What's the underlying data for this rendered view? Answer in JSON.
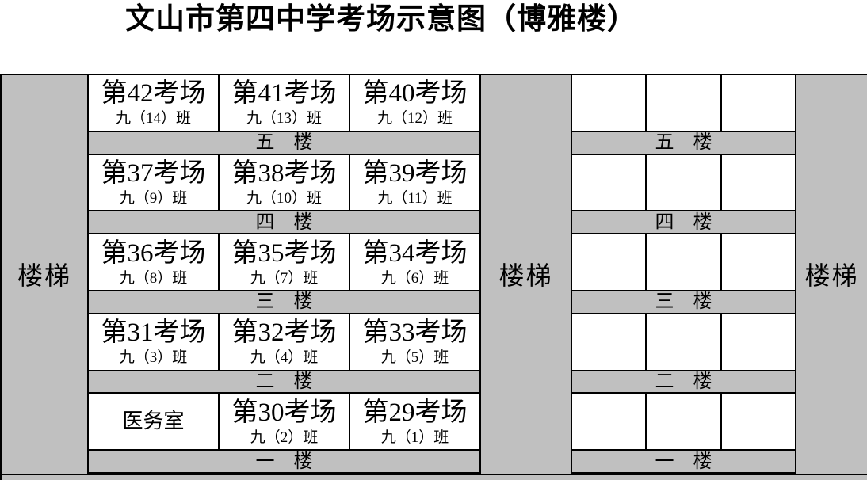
{
  "title": "文山市第四中学考场示意图（博雅楼）",
  "stairs": {
    "left_label": "楼梯",
    "middle_label": "楼梯",
    "right_label": "楼梯"
  },
  "floors": [
    {
      "label": "五　楼",
      "rooms": [
        {
          "name": "第42考场",
          "class": "九（14）班"
        },
        {
          "name": "第41考场",
          "class": "九（13）班"
        },
        {
          "name": "第40考场",
          "class": "九（12）班"
        }
      ]
    },
    {
      "label": "四　楼",
      "rooms": [
        {
          "name": "第37考场",
          "class": "九（9）班"
        },
        {
          "name": "第38考场",
          "class": "九（10）班"
        },
        {
          "name": "第39考场",
          "class": "九（11）班"
        }
      ]
    },
    {
      "label": "三　楼",
      "rooms": [
        {
          "name": "第36考场",
          "class": "九（8）班"
        },
        {
          "name": "第35考场",
          "class": "九（7）班"
        },
        {
          "name": "第34考场",
          "class": "九（6）班"
        }
      ]
    },
    {
      "label": "二　楼",
      "rooms": [
        {
          "name": "第31考场",
          "class": "九（3）班"
        },
        {
          "name": "第32考场",
          "class": "九（4）班"
        },
        {
          "name": "第33考场",
          "class": "九（5）班"
        }
      ]
    },
    {
      "label": "一　楼",
      "rooms": [
        {
          "name": "医务室",
          "class": ""
        },
        {
          "name": "第30考场",
          "class": "九（2）班"
        },
        {
          "name": "第29考场",
          "class": "九（1）班"
        }
      ]
    }
  ],
  "right_wing": {
    "rooms_per_floor": 3
  },
  "colors": {
    "gray": "#c0c0c0",
    "border": "#000000",
    "cell_background": "#ffffff",
    "text": "#000000"
  }
}
